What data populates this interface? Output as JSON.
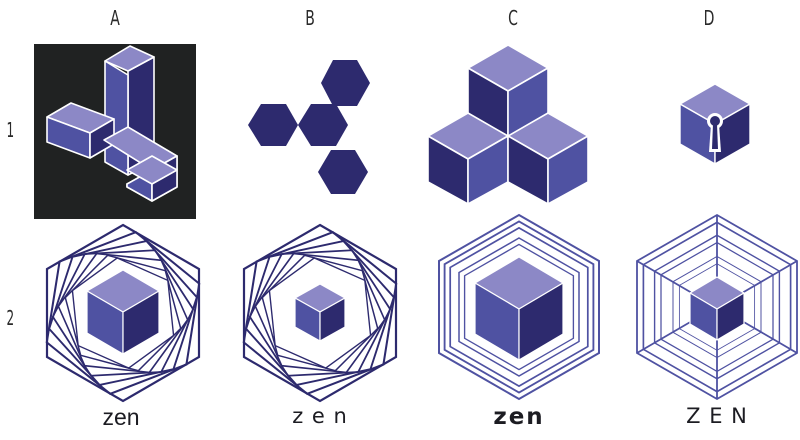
{
  "columns": [
    "A",
    "B",
    "C",
    "D"
  ],
  "rows": [
    "1",
    "2"
  ],
  "wordmarks": [
    "zen",
    "z e n",
    "zen",
    "Z E N"
  ],
  "colors": {
    "dark": "#2d2a6e",
    "mid": "#4f52a2",
    "light": "#8c88c6",
    "panel": "#202222",
    "line": "#3a3285"
  },
  "logos": [
    {
      "row": 1,
      "col": "A",
      "description": "three-arm impossible bar shape on dark panel"
    },
    {
      "row": 1,
      "col": "B",
      "description": "four hexagons in branching cluster"
    },
    {
      "row": 1,
      "col": "C",
      "description": "three stacked cubes pyramid"
    },
    {
      "row": 1,
      "col": "D",
      "description": "cube with keyhole"
    },
    {
      "row": 2,
      "col": "A",
      "description": "cube inside rotating hexagon spiral"
    },
    {
      "row": 2,
      "col": "B",
      "description": "small cube inside rotating hexagon spiral"
    },
    {
      "row": 2,
      "col": "C",
      "description": "large cube inside concentric hexagons"
    },
    {
      "row": 2,
      "col": "D",
      "description": "small cube inside concentric hexagon web"
    }
  ]
}
